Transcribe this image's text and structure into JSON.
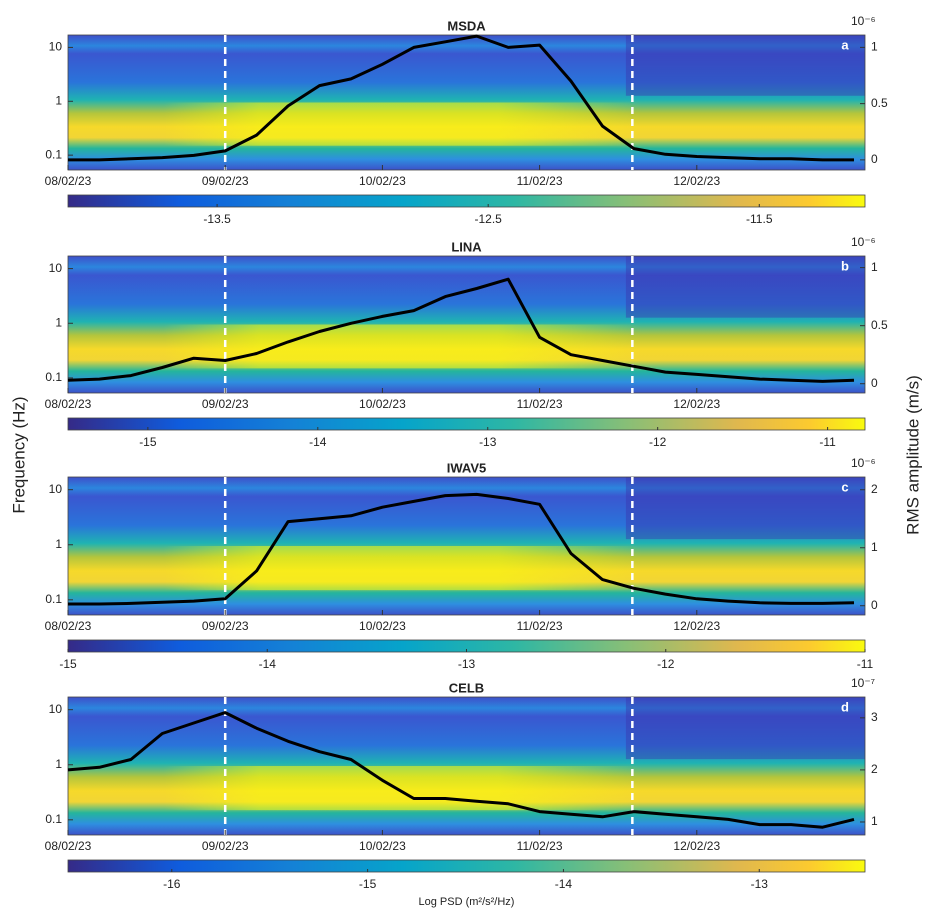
{
  "figure": {
    "ylabel": "Frequency (Hz)",
    "y2label": "RMS amplitude (m/s)"
  },
  "chart_data": [
    {
      "type": "spectrogram",
      "title": "MSDA",
      "panel_label": "a",
      "x": [
        0,
        0.2,
        0.4,
        0.6,
        0.8,
        1.0,
        1.2,
        1.4,
        1.6,
        1.8,
        2.0,
        2.2,
        2.4,
        2.6,
        2.8,
        3.0,
        3.2,
        3.4,
        3.6,
        3.8,
        4.0,
        4.2,
        4.4,
        4.6,
        4.8,
        5.0
      ],
      "xlim": [
        0,
        5.07
      ],
      "xticks": [
        {
          "value": 0,
          "label": "08/02/23"
        },
        {
          "value": 1,
          "label": "09/02/23"
        },
        {
          "value": 2,
          "label": "10/02/23"
        },
        {
          "value": 3,
          "label": "11/02/23"
        },
        {
          "value": 4,
          "label": "12/02/23"
        }
      ],
      "yscale": "log",
      "ylim": [
        0.053,
        17
      ],
      "yticks": [
        0.1,
        1,
        10
      ],
      "y2lim": [
        -0.09,
        1.11
      ],
      "y2ticks": [
        0,
        0.5,
        1
      ],
      "y2_multiplier": "10⁻⁶",
      "events": [
        1.0,
        3.59
      ],
      "series": [
        {
          "color": "#000000",
          "axis": "y2",
          "values": [
            0.0,
            0.0,
            0.01,
            0.02,
            0.04,
            0.08,
            0.22,
            0.48,
            0.66,
            0.72,
            0.85,
            1.0,
            1.05,
            1.1,
            1.0,
            1.02,
            0.7,
            0.3,
            0.1,
            0.05,
            0.03,
            0.02,
            0.01,
            0.01,
            0.0,
            0.0
          ]
        }
      ],
      "colorbar": {
        "clim": [
          -14.05,
          -11.11
        ],
        "ticks": [
          -13.5,
          -12.5,
          -11.5
        ]
      }
    },
    {
      "type": "spectrogram",
      "title": "LINA",
      "panel_label": "b",
      "x": [
        0,
        0.2,
        0.4,
        0.6,
        0.8,
        1.0,
        1.2,
        1.4,
        1.6,
        1.8,
        2.0,
        2.2,
        2.4,
        2.6,
        2.8,
        3.0,
        3.2,
        3.4,
        3.6,
        3.8,
        4.0,
        4.2,
        4.4,
        4.6,
        4.8,
        5.0
      ],
      "xlim": [
        0,
        5.07
      ],
      "xticks": [
        {
          "value": 0,
          "label": "08/02/23"
        },
        {
          "value": 1,
          "label": "09/02/23"
        },
        {
          "value": 2,
          "label": "10/02/23"
        },
        {
          "value": 3,
          "label": "11/02/23"
        },
        {
          "value": 4,
          "label": "12/02/23"
        }
      ],
      "yscale": "log",
      "ylim": [
        0.053,
        17
      ],
      "yticks": [
        0.1,
        1,
        10
      ],
      "y2lim": [
        -0.08,
        1.1
      ],
      "y2ticks": [
        0,
        0.5,
        1
      ],
      "y2_multiplier": "10⁻⁶",
      "events": [
        1.0,
        3.59
      ],
      "series": [
        {
          "color": "#000000",
          "axis": "y2",
          "values": [
            0.03,
            0.04,
            0.07,
            0.14,
            0.22,
            0.2,
            0.26,
            0.36,
            0.45,
            0.52,
            0.58,
            0.63,
            0.75,
            0.82,
            0.9,
            0.4,
            0.25,
            0.2,
            0.15,
            0.1,
            0.08,
            0.06,
            0.04,
            0.03,
            0.02,
            0.03
          ]
        }
      ],
      "colorbar": {
        "clim": [
          -15.47,
          -10.78
        ],
        "ticks": [
          -15,
          -14,
          -13,
          -12,
          -11
        ]
      }
    },
    {
      "type": "spectrogram",
      "title": "IWAV5",
      "panel_label": "c",
      "x": [
        0,
        0.2,
        0.4,
        0.6,
        0.8,
        1.0,
        1.2,
        1.4,
        1.6,
        1.8,
        2.0,
        2.2,
        2.4,
        2.6,
        2.8,
        3.0,
        3.2,
        3.4,
        3.6,
        3.8,
        4.0,
        4.2,
        4.4,
        4.6,
        4.8,
        5.0
      ],
      "xlim": [
        0,
        5.07
      ],
      "xticks": [
        {
          "value": 0,
          "label": "08/02/23"
        },
        {
          "value": 1,
          "label": "09/02/23"
        },
        {
          "value": 2,
          "label": "10/02/23"
        },
        {
          "value": 3,
          "label": "11/02/23"
        },
        {
          "value": 4,
          "label": "12/02/23"
        }
      ],
      "yscale": "log",
      "ylim": [
        0.053,
        17
      ],
      "yticks": [
        0.1,
        1,
        10
      ],
      "y2lim": [
        -0.16,
        2.22
      ],
      "y2ticks": [
        0,
        1,
        2
      ],
      "y2_multiplier": "10⁻⁶",
      "events": [
        1.0,
        3.59
      ],
      "series": [
        {
          "color": "#000000",
          "axis": "y2",
          "values": [
            0.03,
            0.03,
            0.04,
            0.06,
            0.08,
            0.12,
            0.6,
            1.45,
            1.5,
            1.55,
            1.7,
            1.8,
            1.9,
            1.92,
            1.85,
            1.75,
            0.9,
            0.45,
            0.3,
            0.2,
            0.12,
            0.08,
            0.05,
            0.04,
            0.04,
            0.05
          ]
        }
      ],
      "colorbar": {
        "clim": [
          -15,
          -11
        ],
        "ticks": [
          -15,
          -14,
          -13,
          -12,
          -11
        ]
      }
    },
    {
      "type": "spectrogram",
      "title": "CELB",
      "panel_label": "d",
      "x": [
        0,
        0.2,
        0.4,
        0.6,
        0.8,
        1.0,
        1.2,
        1.4,
        1.6,
        1.8,
        2.0,
        2.2,
        2.4,
        2.6,
        2.8,
        3.0,
        3.2,
        3.4,
        3.6,
        3.8,
        4.0,
        4.2,
        4.4,
        4.6,
        4.8,
        5.0
      ],
      "xlim": [
        0,
        5.07
      ],
      "xticks": [
        {
          "value": 0,
          "label": "08/02/23"
        },
        {
          "value": 1,
          "label": "09/02/23"
        },
        {
          "value": 2,
          "label": "10/02/23"
        },
        {
          "value": 3,
          "label": "11/02/23"
        },
        {
          "value": 4,
          "label": "12/02/23"
        }
      ],
      "yscale": "log",
      "ylim": [
        0.053,
        17
      ],
      "yticks": [
        0.1,
        1,
        10
      ],
      "y2lim": [
        0.75,
        3.4
      ],
      "y2ticks": [
        1,
        2,
        3
      ],
      "y2_multiplier": "10⁻⁷",
      "events": [
        1.0,
        3.59
      ],
      "series": [
        {
          "color": "#000000",
          "axis": "y2",
          "values": [
            2.0,
            2.05,
            2.2,
            2.7,
            2.9,
            3.1,
            2.8,
            2.55,
            2.35,
            2.2,
            1.8,
            1.45,
            1.45,
            1.4,
            1.35,
            1.2,
            1.15,
            1.1,
            1.2,
            1.15,
            1.1,
            1.05,
            0.95,
            0.95,
            0.9,
            1.05
          ]
        }
      ],
      "colorbar": {
        "clim": [
          -16.53,
          -12.46
        ],
        "ticks": [
          -16,
          -15,
          -14,
          -13
        ],
        "label": "Log PSD (m²/s²/Hz)"
      }
    }
  ]
}
